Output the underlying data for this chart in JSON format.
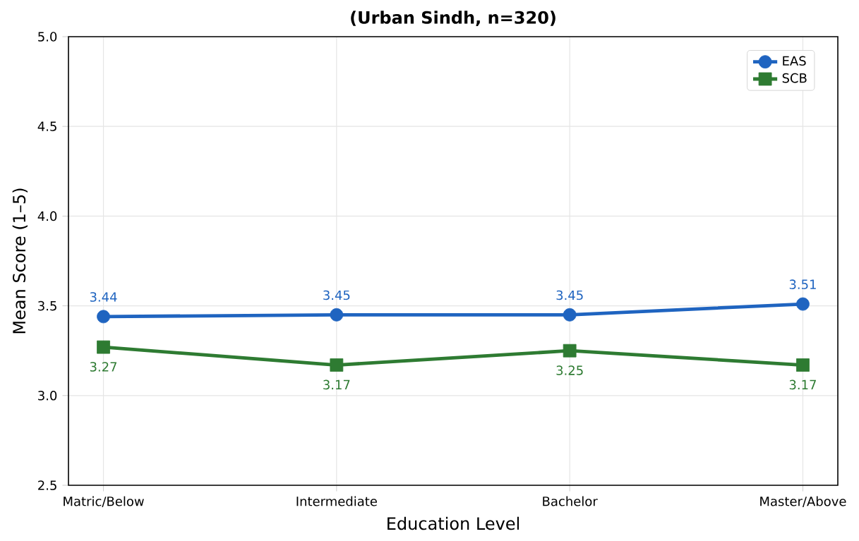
{
  "chart_data": {
    "type": "line",
    "title": "(Urban Sindh, n=320)",
    "xlabel": "Education Level",
    "ylabel": "Mean Score (1–5)",
    "categories": [
      "Matric/Below",
      "Intermediate",
      "Bachelor",
      "Master/Above"
    ],
    "series": [
      {
        "name": "EAS",
        "color": "#1f64c0",
        "marker": "circle",
        "values": [
          3.44,
          3.45,
          3.45,
          3.51
        ]
      },
      {
        "name": "SCB",
        "color": "#2e7b32",
        "marker": "square",
        "values": [
          3.27,
          3.17,
          3.25,
          3.17
        ]
      }
    ],
    "ylim": [
      2.5,
      5.0
    ],
    "yticks": [
      {
        "value": 2.5,
        "label": "2.5"
      },
      {
        "value": 3.0,
        "label": "3.0"
      },
      {
        "value": 3.5,
        "label": "3.5"
      },
      {
        "value": 4.0,
        "label": "4.0"
      },
      {
        "value": 4.5,
        "label": "4.5"
      },
      {
        "value": 5.0,
        "label": "5.0"
      }
    ],
    "grid": true,
    "legend": "top right",
    "data_labels": true,
    "line_style": "solid"
  }
}
